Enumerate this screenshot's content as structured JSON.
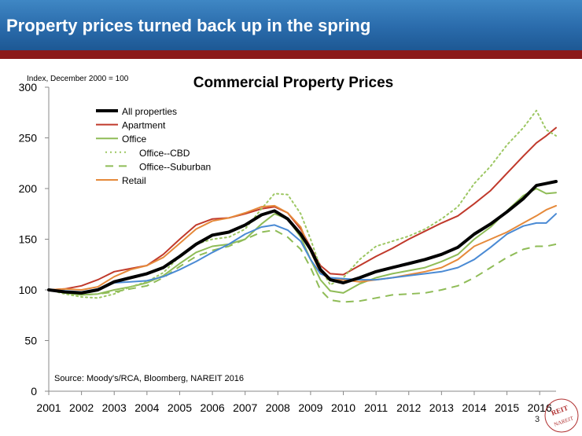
{
  "slide": {
    "title": "Property prices turned back up in the spring",
    "page_number": "3",
    "logo_text": "REIT NAREIT"
  },
  "colors": {
    "header_blue": "#2a6bab",
    "header_red": "#8b1a1a",
    "all_properties": "#000000",
    "apartment": "#c0392b",
    "office": "#8fbc57",
    "office_cbd": "#9dc763",
    "office_suburban": "#8fbc57",
    "retail": "#e5893a",
    "industrial": "#4a8ad4"
  },
  "chart_data": {
    "type": "line",
    "title": "Commercial Property Prices",
    "ylabel": "Index, December 2000 = 100",
    "source": "Source: Moody's/RCA, Bloomberg, NAREIT 2016",
    "ylim": [
      0,
      300
    ],
    "xlim": [
      2001,
      2016.5
    ],
    "yticks": [
      "0",
      "50",
      "100",
      "150",
      "200",
      "250",
      "300"
    ],
    "xticks": [
      "2001",
      "2002",
      "2003",
      "2004",
      "2005",
      "2006",
      "2007",
      "2008",
      "2009",
      "2010",
      "2011",
      "2012",
      "2013",
      "2014",
      "2015",
      "2016"
    ],
    "legend_position": "top-left",
    "x": [
      2001,
      2001.5,
      2002,
      2002.5,
      2003,
      2003.5,
      2004,
      2004.5,
      2005,
      2005.5,
      2006,
      2006.5,
      2007,
      2007.5,
      2007.9,
      2008.3,
      2008.7,
      2009,
      2009.3,
      2009.6,
      2010,
      2010.5,
      2011,
      2011.5,
      2012,
      2012.5,
      2013,
      2013.5,
      2014,
      2014.5,
      2015,
      2015.5,
      2015.9,
      2016.2,
      2016.5
    ],
    "series": [
      {
        "name": "All properties",
        "color_key": "all_properties",
        "style": "solid",
        "width": 4,
        "legend": true,
        "values": [
          100,
          98,
          97,
          100,
          108,
          112,
          116,
          122,
          133,
          145,
          154,
          157,
          164,
          174,
          178,
          170,
          155,
          140,
          120,
          110,
          107,
          112,
          118,
          122,
          126,
          130,
          135,
          142,
          155,
          165,
          177,
          190,
          203,
          205,
          207
        ]
      },
      {
        "name": "Apartment",
        "color_key": "apartment",
        "style": "solid",
        "width": 2,
        "legend": true,
        "values": [
          100,
          101,
          104,
          110,
          118,
          121,
          124,
          135,
          150,
          164,
          170,
          171,
          175,
          180,
          182,
          176,
          160,
          142,
          124,
          116,
          115,
          124,
          133,
          141,
          150,
          158,
          166,
          173,
          185,
          198,
          215,
          232,
          245,
          252,
          260
        ]
      },
      {
        "name": "Office",
        "color_key": "office",
        "style": "solid",
        "width": 2,
        "legend": true,
        "values": [
          100,
          97,
          95,
          96,
          100,
          103,
          107,
          114,
          126,
          137,
          143,
          145,
          150,
          165,
          175,
          170,
          152,
          130,
          110,
          99,
          97,
          106,
          112,
          116,
          119,
          122,
          128,
          135,
          150,
          162,
          178,
          193,
          200,
          195,
          196
        ]
      },
      {
        "name": "Office--CBD",
        "color_key": "office_cbd",
        "style": "dotted",
        "width": 2,
        "legend": true,
        "values": [
          100,
          96,
          93,
          92,
          96,
          103,
          108,
          117,
          133,
          145,
          150,
          152,
          160,
          180,
          195,
          194,
          175,
          150,
          122,
          105,
          112,
          130,
          143,
          148,
          153,
          160,
          170,
          182,
          205,
          222,
          243,
          260,
          277,
          258,
          252
        ]
      },
      {
        "name": "Office--Suburban",
        "color_key": "office_suburban",
        "style": "dashed",
        "width": 2,
        "legend": true,
        "values": [
          100,
          97,
          95,
          96,
          98,
          101,
          104,
          112,
          123,
          133,
          139,
          143,
          150,
          157,
          159,
          152,
          140,
          122,
          100,
          90,
          88,
          89,
          92,
          95,
          96,
          97,
          100,
          104,
          112,
          122,
          132,
          140,
          143,
          143,
          145
        ]
      },
      {
        "name": "Retail",
        "color_key": "retail",
        "style": "solid",
        "width": 2,
        "legend": true,
        "values": [
          100,
          101,
          100,
          103,
          113,
          120,
          124,
          132,
          146,
          160,
          168,
          171,
          176,
          182,
          183,
          176,
          162,
          138,
          117,
          110,
          110,
          108,
          110,
          112,
          115,
          118,
          122,
          130,
          143,
          150,
          157,
          166,
          173,
          179,
          183
        ]
      },
      {
        "name": "",
        "color_key": "industrial",
        "style": "solid",
        "width": 2,
        "legend": false,
        "values": [
          100,
          99,
          98,
          101,
          107,
          108,
          109,
          113,
          120,
          128,
          137,
          145,
          155,
          162,
          164,
          159,
          148,
          130,
          116,
          112,
          111,
          110,
          110,
          112,
          114,
          116,
          118,
          122,
          130,
          142,
          155,
          163,
          166,
          166,
          175
        ]
      }
    ]
  }
}
